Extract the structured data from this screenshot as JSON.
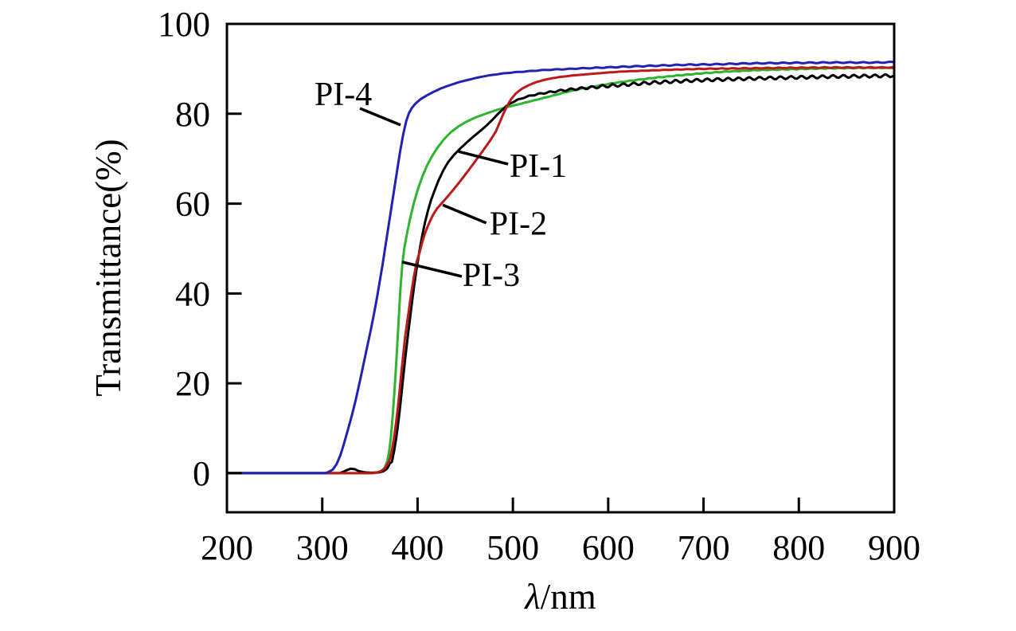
{
  "chart_data": {
    "type": "line",
    "title": "",
    "xlabel_symbol": "λ",
    "xlabel_unit": "/nm",
    "ylabel": "Transmittance(%)",
    "x_range": [
      200,
      900
    ],
    "y_range": [
      0,
      100
    ],
    "y_display_min": -8.7,
    "x_ticks": [
      200,
      300,
      400,
      500,
      600,
      700,
      800,
      900
    ],
    "y_ticks": [
      0,
      20,
      40,
      60,
      80,
      100
    ],
    "grid": false,
    "legend_position": "inline-annotations",
    "background": "#ffffff",
    "axis_color": "#000000",
    "series": [
      {
        "name": "PI-3",
        "color": "#2eb42e",
        "ripple": {
          "start": 450,
          "period": 10,
          "amp": 0.07,
          "ramp": 200
        },
        "points": [
          [
            200,
            0
          ],
          [
            353,
            0
          ],
          [
            358,
            0.15
          ],
          [
            362,
            0.5
          ],
          [
            365,
            1
          ],
          [
            368,
            2.5
          ],
          [
            370,
            4.5
          ],
          [
            372,
            8
          ],
          [
            374,
            13
          ],
          [
            376,
            19
          ],
          [
            378,
            26
          ],
          [
            380,
            33.5
          ],
          [
            382,
            41
          ],
          [
            384,
            46.5
          ],
          [
            386,
            50
          ],
          [
            389,
            53.5
          ],
          [
            392,
            56.5
          ],
          [
            396,
            60
          ],
          [
            400,
            63
          ],
          [
            405,
            66
          ],
          [
            410,
            68.5
          ],
          [
            415,
            70.5
          ],
          [
            421,
            72.5
          ],
          [
            428,
            74.4
          ],
          [
            435,
            75.9
          ],
          [
            443,
            77.2
          ],
          [
            451,
            78.2
          ],
          [
            460,
            79.1
          ],
          [
            470,
            79.9
          ],
          [
            481,
            80.7
          ],
          [
            492,
            81.4
          ],
          [
            504,
            82
          ],
          [
            517,
            82.7
          ],
          [
            530,
            83.4
          ],
          [
            543,
            84.1
          ],
          [
            557,
            84.9
          ],
          [
            572,
            85.6
          ],
          [
            588,
            86.2
          ],
          [
            605,
            86.8
          ],
          [
            625,
            87.4
          ],
          [
            648,
            88
          ],
          [
            672,
            88.5
          ],
          [
            698,
            89
          ],
          [
            725,
            89.4
          ],
          [
            755,
            89.7
          ],
          [
            790,
            89.9
          ],
          [
            830,
            90.1
          ],
          [
            870,
            90.2
          ],
          [
            900,
            90.2
          ]
        ]
      },
      {
        "name": "PI-1",
        "color": "#000000",
        "ripple": {
          "start": 470,
          "period": 11,
          "amp": 0.32,
          "ramp": 130
        },
        "points": [
          [
            200,
            0
          ],
          [
            318,
            0
          ],
          [
            322,
            0.3
          ],
          [
            326,
            0.7
          ],
          [
            330,
            1
          ],
          [
            334,
            0.9
          ],
          [
            338,
            0.5
          ],
          [
            344,
            0.2
          ],
          [
            352,
            0.1
          ],
          [
            360,
            0.2
          ],
          [
            364,
            0.4
          ],
          [
            368,
            1
          ],
          [
            371,
            2.2
          ],
          [
            373,
            2.5
          ],
          [
            375,
            4.5
          ],
          [
            377,
            7
          ],
          [
            379,
            10
          ],
          [
            381,
            13.5
          ],
          [
            383,
            17.5
          ],
          [
            385,
            21.5
          ],
          [
            387,
            25.5
          ],
          [
            390,
            31
          ],
          [
            393,
            36
          ],
          [
            396,
            41
          ],
          [
            399,
            45.5
          ],
          [
            402,
            49.5
          ],
          [
            405,
            53
          ],
          [
            408,
            56
          ],
          [
            411,
            58.5
          ],
          [
            414,
            60.7
          ],
          [
            418,
            63
          ],
          [
            422,
            65.2
          ],
          [
            427,
            67.4
          ],
          [
            432,
            69.2
          ],
          [
            438,
            70.8
          ],
          [
            445,
            72.3
          ],
          [
            452,
            73.7
          ],
          [
            459,
            75
          ],
          [
            466,
            76.2
          ],
          [
            473,
            77.5
          ],
          [
            480,
            79
          ],
          [
            486,
            80.3
          ],
          [
            492,
            81.5
          ],
          [
            498,
            82.4
          ],
          [
            505,
            83.1
          ],
          [
            513,
            83.7
          ],
          [
            522,
            84.2
          ],
          [
            532,
            84.6
          ],
          [
            542,
            84.9
          ],
          [
            552,
            85.2
          ],
          [
            565,
            85.5
          ],
          [
            580,
            85.8
          ],
          [
            600,
            86.2
          ],
          [
            620,
            86.5
          ],
          [
            645,
            86.9
          ],
          [
            670,
            87.2
          ],
          [
            700,
            87.5
          ],
          [
            730,
            87.7
          ],
          [
            760,
            87.9
          ],
          [
            800,
            88.1
          ],
          [
            840,
            88.3
          ],
          [
            880,
            88.4
          ],
          [
            900,
            88.5
          ]
        ]
      },
      {
        "name": "PI-2",
        "color": "#bc1a1a",
        "ripple": {
          "start": 560,
          "period": 12,
          "amp": 0.08,
          "ramp": 200
        },
        "points": [
          [
            200,
            0
          ],
          [
            352,
            0
          ],
          [
            358,
            0.2
          ],
          [
            362,
            0.5
          ],
          [
            366,
            1.2
          ],
          [
            369,
            2.2
          ],
          [
            371,
            3.2
          ],
          [
            373,
            5
          ],
          [
            375,
            7.5
          ],
          [
            377,
            10.5
          ],
          [
            379,
            14
          ],
          [
            381,
            18
          ],
          [
            383,
            22.5
          ],
          [
            385,
            26.5
          ],
          [
            387,
            30.5
          ],
          [
            390,
            35
          ],
          [
            393,
            39.5
          ],
          [
            396,
            43.5
          ],
          [
            399,
            47
          ],
          [
            402,
            49
          ],
          [
            405,
            51.5
          ],
          [
            408,
            53.5
          ],
          [
            412,
            55.6
          ],
          [
            416,
            57.4
          ],
          [
            420,
            58.8
          ],
          [
            425,
            60
          ],
          [
            430,
            61.2
          ],
          [
            436,
            62.7
          ],
          [
            444,
            64.8
          ],
          [
            452,
            67
          ],
          [
            460,
            69.3
          ],
          [
            468,
            71.6
          ],
          [
            476,
            74
          ],
          [
            482,
            76
          ],
          [
            486,
            78
          ],
          [
            490,
            80
          ],
          [
            494,
            81.8
          ],
          [
            498,
            83.2
          ],
          [
            503,
            84.5
          ],
          [
            509,
            85.5
          ],
          [
            516,
            86.3
          ],
          [
            524,
            87
          ],
          [
            532,
            87.5
          ],
          [
            541,
            87.9
          ],
          [
            550,
            88.2
          ],
          [
            562,
            88.5
          ],
          [
            578,
            88.8
          ],
          [
            595,
            89.1
          ],
          [
            615,
            89.4
          ],
          [
            640,
            89.6
          ],
          [
            665,
            89.8
          ],
          [
            700,
            90
          ],
          [
            740,
            90.1
          ],
          [
            780,
            90.2
          ],
          [
            830,
            90.3
          ],
          [
            900,
            90.3
          ]
        ]
      },
      {
        "name": "PI-4",
        "color": "#2121b4",
        "ripple": {
          "start": 430,
          "period": 14,
          "amp": 0.1,
          "ramp": 200
        },
        "points": [
          [
            200,
            0
          ],
          [
            303,
            0
          ],
          [
            307,
            0.3
          ],
          [
            311,
            0.8
          ],
          [
            315,
            2
          ],
          [
            319,
            4
          ],
          [
            323,
            6.7
          ],
          [
            327,
            9.7
          ],
          [
            331,
            12.8
          ],
          [
            335,
            16.2
          ],
          [
            339,
            20
          ],
          [
            343,
            24
          ],
          [
            347,
            28
          ],
          [
            351,
            32
          ],
          [
            355,
            36.3
          ],
          [
            359,
            41
          ],
          [
            363,
            46
          ],
          [
            367,
            51.5
          ],
          [
            371,
            57
          ],
          [
            375,
            62.5
          ],
          [
            379,
            68
          ],
          [
            382,
            72
          ],
          [
            385,
            75.5
          ],
          [
            388,
            78.3
          ],
          [
            391,
            80.2
          ],
          [
            394,
            81.3
          ],
          [
            398,
            82.3
          ],
          [
            403,
            83.2
          ],
          [
            409,
            84
          ],
          [
            416,
            84.8
          ],
          [
            424,
            85.6
          ],
          [
            433,
            86.3
          ],
          [
            443,
            87
          ],
          [
            454,
            87.6
          ],
          [
            466,
            88.2
          ],
          [
            480,
            88.7
          ],
          [
            495,
            89.1
          ],
          [
            512,
            89.4
          ],
          [
            530,
            89.7
          ],
          [
            550,
            89.9
          ],
          [
            572,
            90.1
          ],
          [
            596,
            90.3
          ],
          [
            622,
            90.5
          ],
          [
            650,
            90.7
          ],
          [
            680,
            90.9
          ],
          [
            712,
            91
          ],
          [
            746,
            91.2
          ],
          [
            782,
            91.3
          ],
          [
            830,
            91.4
          ],
          [
            880,
            91.4
          ],
          [
            900,
            91.5
          ]
        ]
      }
    ],
    "annotations": [
      {
        "label": "PI-4",
        "text_x": 322,
        "text_y": 84.6,
        "line": [
          339.5,
          81.2,
          382.1,
          77.5
        ]
      },
      {
        "label": "PI-1",
        "text_x": 526.6,
        "text_y": 68.6,
        "line": [
          495,
          68.8,
          443,
          71.6
        ]
      },
      {
        "label": "PI-2",
        "text_x": 505.7,
        "text_y": 55.8,
        "line": [
          472,
          55.7,
          426.4,
          59.7
        ]
      },
      {
        "label": "PI-3",
        "text_x": 477.3,
        "text_y": 44.3,
        "line": [
          446.4,
          43.8,
          383.8,
          47
        ]
      }
    ]
  }
}
